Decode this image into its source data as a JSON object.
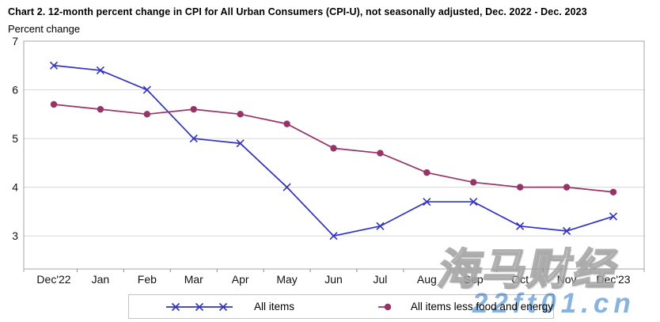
{
  "header": {
    "title": "Chart 2. 12-month percent change in CPI for All Urban Consumers (CPI-U), not seasonally adjusted, Dec. 2022 - Dec. 2023",
    "subtitle": "Percent change"
  },
  "chart_data": {
    "type": "line",
    "title": "Chart 2. 12-month percent change in CPI for All Urban Consumers (CPI-U), not seasonally adjusted, Dec. 2022 - Dec. 2023",
    "xlabel": "",
    "ylabel": "Percent change",
    "categories": [
      "Dec'22",
      "Jan",
      "Feb",
      "Mar",
      "Apr",
      "May",
      "Jun",
      "Jul",
      "Aug",
      "Sep",
      "Oct",
      "Nov",
      "Dec'23"
    ],
    "series": [
      {
        "name": "All items",
        "marker": "x",
        "color": "#3030CF",
        "values": [
          6.5,
          6.4,
          6.0,
          5.0,
          4.9,
          4.0,
          3.0,
          3.2,
          3.7,
          3.7,
          3.2,
          3.1,
          3.4
        ]
      },
      {
        "name": "All items less food and energy",
        "marker": "dot",
        "color": "#993366",
        "values": [
          5.7,
          5.6,
          5.5,
          5.6,
          5.5,
          5.3,
          4.8,
          4.7,
          4.3,
          4.1,
          4.0,
          4.0,
          3.9
        ]
      }
    ],
    "yticks": [
      7,
      6,
      5,
      4,
      3
    ],
    "ylim": [
      2.32,
      7
    ],
    "grid": true,
    "legend_position": "bottom"
  },
  "watermark": {
    "cn_text": "海马财经",
    "url_text": "22ft01.cn",
    "url_color": "#79ABDE"
  },
  "style": {
    "grid_color": "#D6D6D6",
    "border_color": "#A6A6A6",
    "tick_color": "#8C8C8C"
  }
}
